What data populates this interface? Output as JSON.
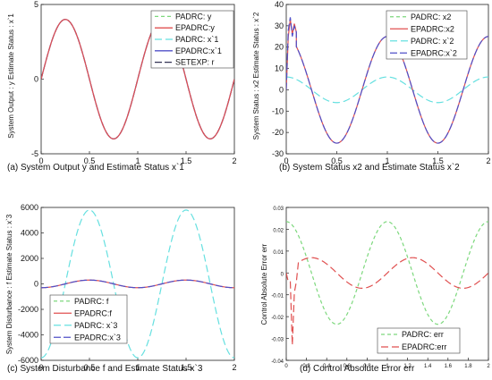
{
  "chart_data": [
    {
      "type": "line",
      "panel": "a",
      "caption": "(a)  System Output y and Estimate Status x`1",
      "ylabel": "System Output : y    Estimate Status : x`1",
      "xlim": [
        0,
        2
      ],
      "ylim": [
        -5,
        5
      ],
      "xticks": [
        "0",
        "0.5",
        "1",
        "1.5",
        "2"
      ],
      "yticks": [
        "5",
        "0",
        "-5"
      ],
      "ytick_values": [
        5,
        0,
        -5
      ],
      "grid": false,
      "legend_position": "top-right",
      "legend": [
        {
          "label": "PADRC: y",
          "color": "#7dd87d",
          "dash": "4,3"
        },
        {
          "label": "EPADRC:y",
          "color": "#e05050",
          "dash": ""
        },
        {
          "label": "PADRC: x`1",
          "color": "#66e0e0",
          "dash": "8,4"
        },
        {
          "label": "EPADRC:x`1",
          "color": "#5050c8",
          "dash": ""
        },
        {
          "label": "SETEXP: r",
          "color": "#333355",
          "dash": "8,3"
        }
      ],
      "series": [
        {
          "label": "SETEXP: r",
          "formula": "4 sin(2πt)",
          "amplitude": 4,
          "frequency": 1,
          "offset": 0,
          "color": "#333355",
          "dash": "8,3"
        },
        {
          "label": "EPADRC:x`1",
          "formula": "4 sin(2πt)",
          "amplitude": 4,
          "frequency": 1,
          "offset": 0,
          "color": "#5050c8",
          "dash": ""
        },
        {
          "label": "EPADRC:y",
          "formula": "4 sin(2πt)",
          "amplitude": 4,
          "frequency": 1,
          "offset": 0,
          "color": "#e05050",
          "dash": ""
        }
      ]
    },
    {
      "type": "line",
      "panel": "b",
      "caption": "(b)  System Status x2 and Estimate Status x`2",
      "ylabel": "System Status : x2    Estimate Status : x`2",
      "xlim": [
        0,
        2
      ],
      "ylim": [
        -30,
        40
      ],
      "xticks": [
        "0",
        "0.5",
        "1",
        "1.5",
        "2"
      ],
      "yticks": [
        "40",
        "30",
        "20",
        "10",
        "0",
        "-10",
        "-20",
        "-30"
      ],
      "ytick_values": [
        40,
        30,
        20,
        10,
        0,
        -10,
        -20,
        -30
      ],
      "grid": false,
      "legend_position": "top-right",
      "legend": [
        {
          "label": "PADRC: x2",
          "color": "#7dd87d",
          "dash": "4,3"
        },
        {
          "label": "EPADRC:x2",
          "color": "#e05050",
          "dash": ""
        },
        {
          "label": "PADRC: x`2",
          "color": "#66e0e0",
          "dash": "8,4"
        },
        {
          "label": "EPADRC:x`2",
          "color": "#5050c8",
          "dash": "8,3"
        }
      ],
      "series": [
        {
          "label": "PADRC: x`2",
          "formula": "6 cos(2πt)",
          "amplitude": 6,
          "frequency": 1,
          "offset": 0,
          "color": "#66e0e0",
          "dash": "8,4"
        },
        {
          "label": "EPADRC:x2",
          "formula": "25 cos(2πt)",
          "amplitude": 25,
          "frequency": 1,
          "offset": 0,
          "color": "#e05050",
          "dash": "",
          "transient": [
            [
              0,
              0
            ],
            [
              0.02,
              25
            ],
            [
              0.04,
              33
            ],
            [
              0.06,
              26
            ],
            [
              0.08,
              31
            ],
            [
              0.1,
              27
            ]
          ]
        },
        {
          "label": "EPADRC:x`2",
          "formula": "25 cos(2πt)",
          "amplitude": 25,
          "frequency": 1,
          "offset": 0,
          "color": "#5050c8",
          "dash": "8,3",
          "transient": [
            [
              0,
              0
            ],
            [
              0.02,
              28
            ],
            [
              0.04,
              34
            ],
            [
              0.06,
              25
            ],
            [
              0.08,
              30
            ],
            [
              0.1,
              27
            ]
          ]
        }
      ]
    },
    {
      "type": "line",
      "panel": "c",
      "caption": "(c)  System Disturbance f and Estimate Status x`3",
      "ylabel": "System Disturbance : f  Estimate Status : x`3",
      "xlim": [
        0,
        2
      ],
      "ylim": [
        -6000,
        6000
      ],
      "xticks": [
        "0",
        "0.5",
        "1",
        "1.5",
        "2"
      ],
      "yticks": [
        "6000",
        "4000",
        "2000",
        "0",
        "-2000",
        "-4000",
        "-6000"
      ],
      "ytick_values": [
        6000,
        4000,
        2000,
        0,
        -2000,
        -4000,
        -6000
      ],
      "grid": false,
      "legend_position": "bottom-left",
      "legend": [
        {
          "label": "PADRC: f",
          "color": "#7dd87d",
          "dash": "4,3"
        },
        {
          "label": "EPADRC:f",
          "color": "#e05050",
          "dash": ""
        },
        {
          "label": "PADRC: x`3",
          "color": "#66e0e0",
          "dash": "8,4"
        },
        {
          "label": "EPADRC:x`3",
          "color": "#5050c8",
          "dash": "8,3"
        }
      ],
      "series": [
        {
          "label": "PADRC: x`3",
          "formula": "-5800 cos(2πt)",
          "amplitude": -5800,
          "frequency": 1,
          "offset": 0,
          "color": "#66e0e0",
          "dash": "8,4"
        },
        {
          "label": "EPADRC:f",
          "formula": "-300 cos(2πt)",
          "amplitude": -300,
          "frequency": 1,
          "offset": 0,
          "color": "#e05050",
          "dash": ""
        },
        {
          "label": "EPADRC:x`3",
          "formula": "-300 cos(2πt)",
          "amplitude": -300,
          "frequency": 1,
          "offset": 0,
          "color": "#5050c8",
          "dash": "8,3"
        }
      ]
    },
    {
      "type": "line",
      "panel": "d",
      "caption": "(d)  Control Absolute Error err",
      "ylabel": "Control Absolute Error err",
      "xlim": [
        0,
        2
      ],
      "ylim": [
        -0.04,
        0.03
      ],
      "xticks": [
        "0",
        "0.2",
        "0.4",
        "0.6",
        "0.8",
        "1",
        "1.2",
        "1.4",
        "1.6",
        "1.8",
        "2"
      ],
      "yticks": [
        "0.03",
        "0.02",
        "0.01",
        "0",
        "-0.01",
        "-0.02",
        "-0.03",
        "-0.04"
      ],
      "ytick_values": [
        0.03,
        0.02,
        0.01,
        0,
        -0.01,
        -0.02,
        -0.03,
        -0.04
      ],
      "grid": false,
      "legend_position": "bottom-right",
      "legend": [
        {
          "label": "PADRC: err",
          "color": "#7dd87d",
          "dash": "4,3"
        },
        {
          "label": "EPADRC:err",
          "color": "#e05050",
          "dash": "8,4"
        }
      ],
      "series": [
        {
          "label": "PADRC: err",
          "formula": "0.0235 cos(2πt)",
          "amplitude": 0.0235,
          "frequency": 1,
          "offset": 0,
          "color": "#7dd87d",
          "dash": "4,3"
        },
        {
          "label": "EPADRC:err",
          "formula": "0.007 sin(2πt)",
          "amplitude": 0.007,
          "frequency": 1,
          "offset": 0,
          "color": "#e05050",
          "dash": "8,4",
          "start": 0.12,
          "transient": [
            [
              0,
              0
            ],
            [
              0.02,
              -0.004
            ],
            [
              0.04,
              -0.004
            ],
            [
              0.06,
              -0.033
            ],
            [
              0.08,
              -0.009
            ],
            [
              0.1,
              -0.004
            ],
            [
              0.12,
              0.0048
            ]
          ]
        }
      ]
    }
  ]
}
